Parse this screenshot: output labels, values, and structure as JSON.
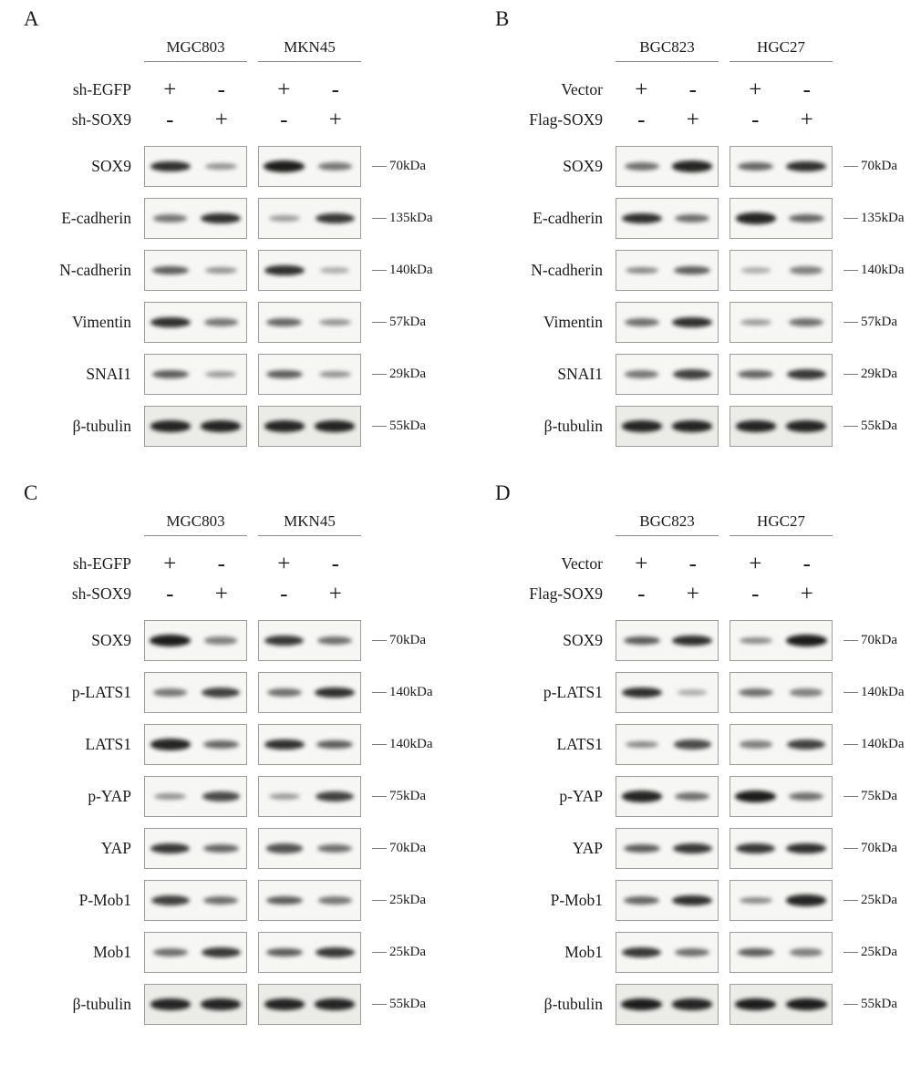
{
  "panels": [
    {
      "label": "A",
      "cell_lines": [
        "MGC803",
        "MKN45"
      ],
      "conditions": [
        {
          "name": "sh-EGFP",
          "signs": [
            "+",
            "-",
            "+",
            "-"
          ]
        },
        {
          "name": "sh-SOX9",
          "signs": [
            "-",
            "+",
            "-",
            "+"
          ]
        }
      ],
      "rows": [
        {
          "protein": "SOX9",
          "marker": "70kDa",
          "bands": [
            0.85,
            0.3,
            0.95,
            0.45
          ]
        },
        {
          "protein": "E-cadherin",
          "marker": "135kDa",
          "bands": [
            0.45,
            0.85,
            0.25,
            0.8
          ]
        },
        {
          "protein": "N-cadherin",
          "marker": "140kDa",
          "bands": [
            0.6,
            0.3,
            0.85,
            0.15
          ]
        },
        {
          "protein": "Vimentin",
          "marker": "57kDa",
          "bands": [
            0.85,
            0.45,
            0.55,
            0.3
          ]
        },
        {
          "protein": "SNAI1",
          "marker": "29kDa",
          "bands": [
            0.6,
            0.25,
            0.6,
            0.3
          ]
        },
        {
          "protein": "β-tubulin",
          "marker": "55kDa",
          "bands": [
            0.9,
            0.9,
            0.9,
            0.9
          ]
        }
      ]
    },
    {
      "label": "B",
      "cell_lines": [
        "BGC823",
        "HGC27"
      ],
      "conditions": [
        {
          "name": "Vector",
          "signs": [
            "+",
            "-",
            "+",
            "-"
          ]
        },
        {
          "name": "Flag-SOX9",
          "signs": [
            "-",
            "+",
            "-",
            "+"
          ]
        }
      ],
      "rows": [
        {
          "protein": "SOX9",
          "marker": "70kDa",
          "bands": [
            0.5,
            0.9,
            0.55,
            0.85
          ]
        },
        {
          "protein": "E-cadherin",
          "marker": "135kDa",
          "bands": [
            0.85,
            0.5,
            0.9,
            0.55
          ]
        },
        {
          "protein": "N-cadherin",
          "marker": "140kDa",
          "bands": [
            0.35,
            0.6,
            0.15,
            0.4
          ]
        },
        {
          "protein": "Vimentin",
          "marker": "57kDa",
          "bands": [
            0.5,
            0.85,
            0.25,
            0.5
          ]
        },
        {
          "protein": "SNAI1",
          "marker": "29kDa",
          "bands": [
            0.45,
            0.75,
            0.55,
            0.8
          ]
        },
        {
          "protein": "β-tubulin",
          "marker": "55kDa",
          "bands": [
            0.9,
            0.9,
            0.9,
            0.9
          ]
        }
      ]
    },
    {
      "label": "C",
      "cell_lines": [
        "MGC803",
        "MKN45"
      ],
      "conditions": [
        {
          "name": "sh-EGFP",
          "signs": [
            "+",
            "-",
            "+",
            "-"
          ]
        },
        {
          "name": "sh-SOX9",
          "signs": [
            "-",
            "+",
            "-",
            "+"
          ]
        }
      ],
      "rows": [
        {
          "protein": "SOX9",
          "marker": "70kDa",
          "bands": [
            0.95,
            0.4,
            0.8,
            0.5
          ]
        },
        {
          "protein": "p-LATS1",
          "marker": "140kDa",
          "bands": [
            0.45,
            0.75,
            0.5,
            0.85
          ]
        },
        {
          "protein": "LATS1",
          "marker": "140kDa",
          "bands": [
            0.9,
            0.55,
            0.85,
            0.6
          ]
        },
        {
          "protein": "p-YAP",
          "marker": "75kDa",
          "bands": [
            0.3,
            0.7,
            0.25,
            0.75
          ]
        },
        {
          "protein": "YAP",
          "marker": "70kDa",
          "bands": [
            0.8,
            0.55,
            0.65,
            0.5
          ]
        },
        {
          "protein": "P-Mob1",
          "marker": "25kDa",
          "bands": [
            0.75,
            0.5,
            0.6,
            0.45
          ]
        },
        {
          "protein": "Mob1",
          "marker": "25kDa",
          "bands": [
            0.5,
            0.8,
            0.6,
            0.8
          ]
        },
        {
          "protein": "β-tubulin",
          "marker": "55kDa",
          "bands": [
            0.9,
            0.9,
            0.9,
            0.9
          ]
        }
      ]
    },
    {
      "label": "D",
      "cell_lines": [
        "BGC823",
        "HGC27"
      ],
      "conditions": [
        {
          "name": "Vector",
          "signs": [
            "+",
            "-",
            "+",
            "-"
          ]
        },
        {
          "name": "Flag-SOX9",
          "signs": [
            "-",
            "+",
            "-",
            "+"
          ]
        }
      ],
      "rows": [
        {
          "protein": "SOX9",
          "marker": "70kDa",
          "bands": [
            0.6,
            0.85,
            0.35,
            0.95
          ]
        },
        {
          "protein": "p-LATS1",
          "marker": "140kDa",
          "bands": [
            0.85,
            0.15,
            0.5,
            0.4
          ]
        },
        {
          "protein": "LATS1",
          "marker": "140kDa",
          "bands": [
            0.35,
            0.7,
            0.4,
            0.75
          ]
        },
        {
          "protein": "p-YAP",
          "marker": "75kDa",
          "bands": [
            0.9,
            0.5,
            0.95,
            0.5
          ]
        },
        {
          "protein": "YAP",
          "marker": "70kDa",
          "bands": [
            0.6,
            0.8,
            0.8,
            0.85
          ]
        },
        {
          "protein": "P-Mob1",
          "marker": "25kDa",
          "bands": [
            0.55,
            0.85,
            0.35,
            0.9
          ]
        },
        {
          "protein": "Mob1",
          "marker": "25kDa",
          "bands": [
            0.8,
            0.5,
            0.6,
            0.4
          ]
        },
        {
          "protein": "β-tubulin",
          "marker": "55kDa",
          "bands": [
            0.95,
            0.9,
            0.95,
            0.95
          ]
        }
      ]
    }
  ]
}
